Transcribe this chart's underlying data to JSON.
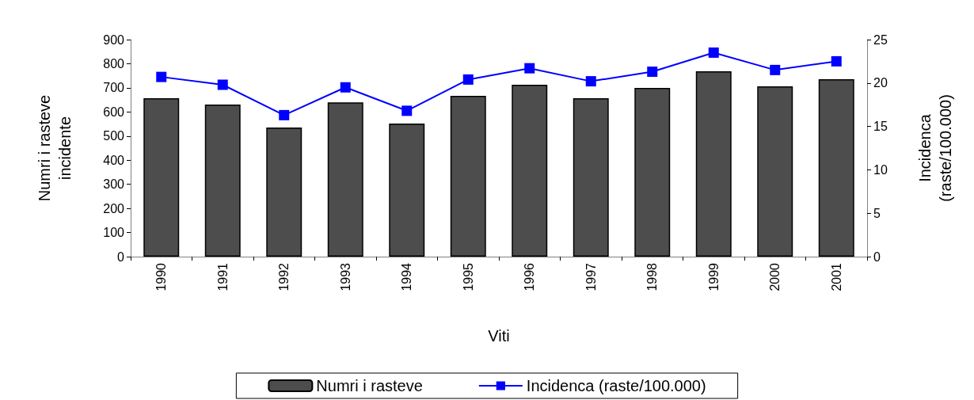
{
  "chart_data": {
    "type": "bar",
    "xlabel": "Viti",
    "ylabel": "Numri i rasteve\nincidente",
    "y2label": "Incidenca\n(raste/100.000)",
    "categories": [
      "1990",
      "1991",
      "1992",
      "1993",
      "1994",
      "1995",
      "1996",
      "1997",
      "1998",
      "1999",
      "2000",
      "2001"
    ],
    "series": [
      {
        "name": "Numri i rasteve",
        "color": "#4d4d4d",
        "values": [
          657,
          631,
          535,
          640,
          552,
          667,
          713,
          657,
          700,
          769,
          706,
          736
        ]
      },
      {
        "name": "Incidenca (raste/100.000)",
        "type": "line",
        "axis": "y2",
        "color": "#0000ff",
        "marker": "square",
        "values": [
          20.7,
          19.8,
          16.3,
          19.5,
          16.8,
          20.4,
          21.7,
          20.2,
          21.3,
          23.5,
          21.5,
          22.5
        ]
      }
    ],
    "ylim": [
      0,
      900
    ],
    "yticks": [
      0,
      100,
      200,
      300,
      400,
      500,
      600,
      700,
      800,
      900
    ],
    "y2lim": [
      0,
      25
    ],
    "y2ticks": [
      0,
      5,
      10,
      15,
      20,
      25
    ],
    "grid": false,
    "legend": "bottom"
  }
}
